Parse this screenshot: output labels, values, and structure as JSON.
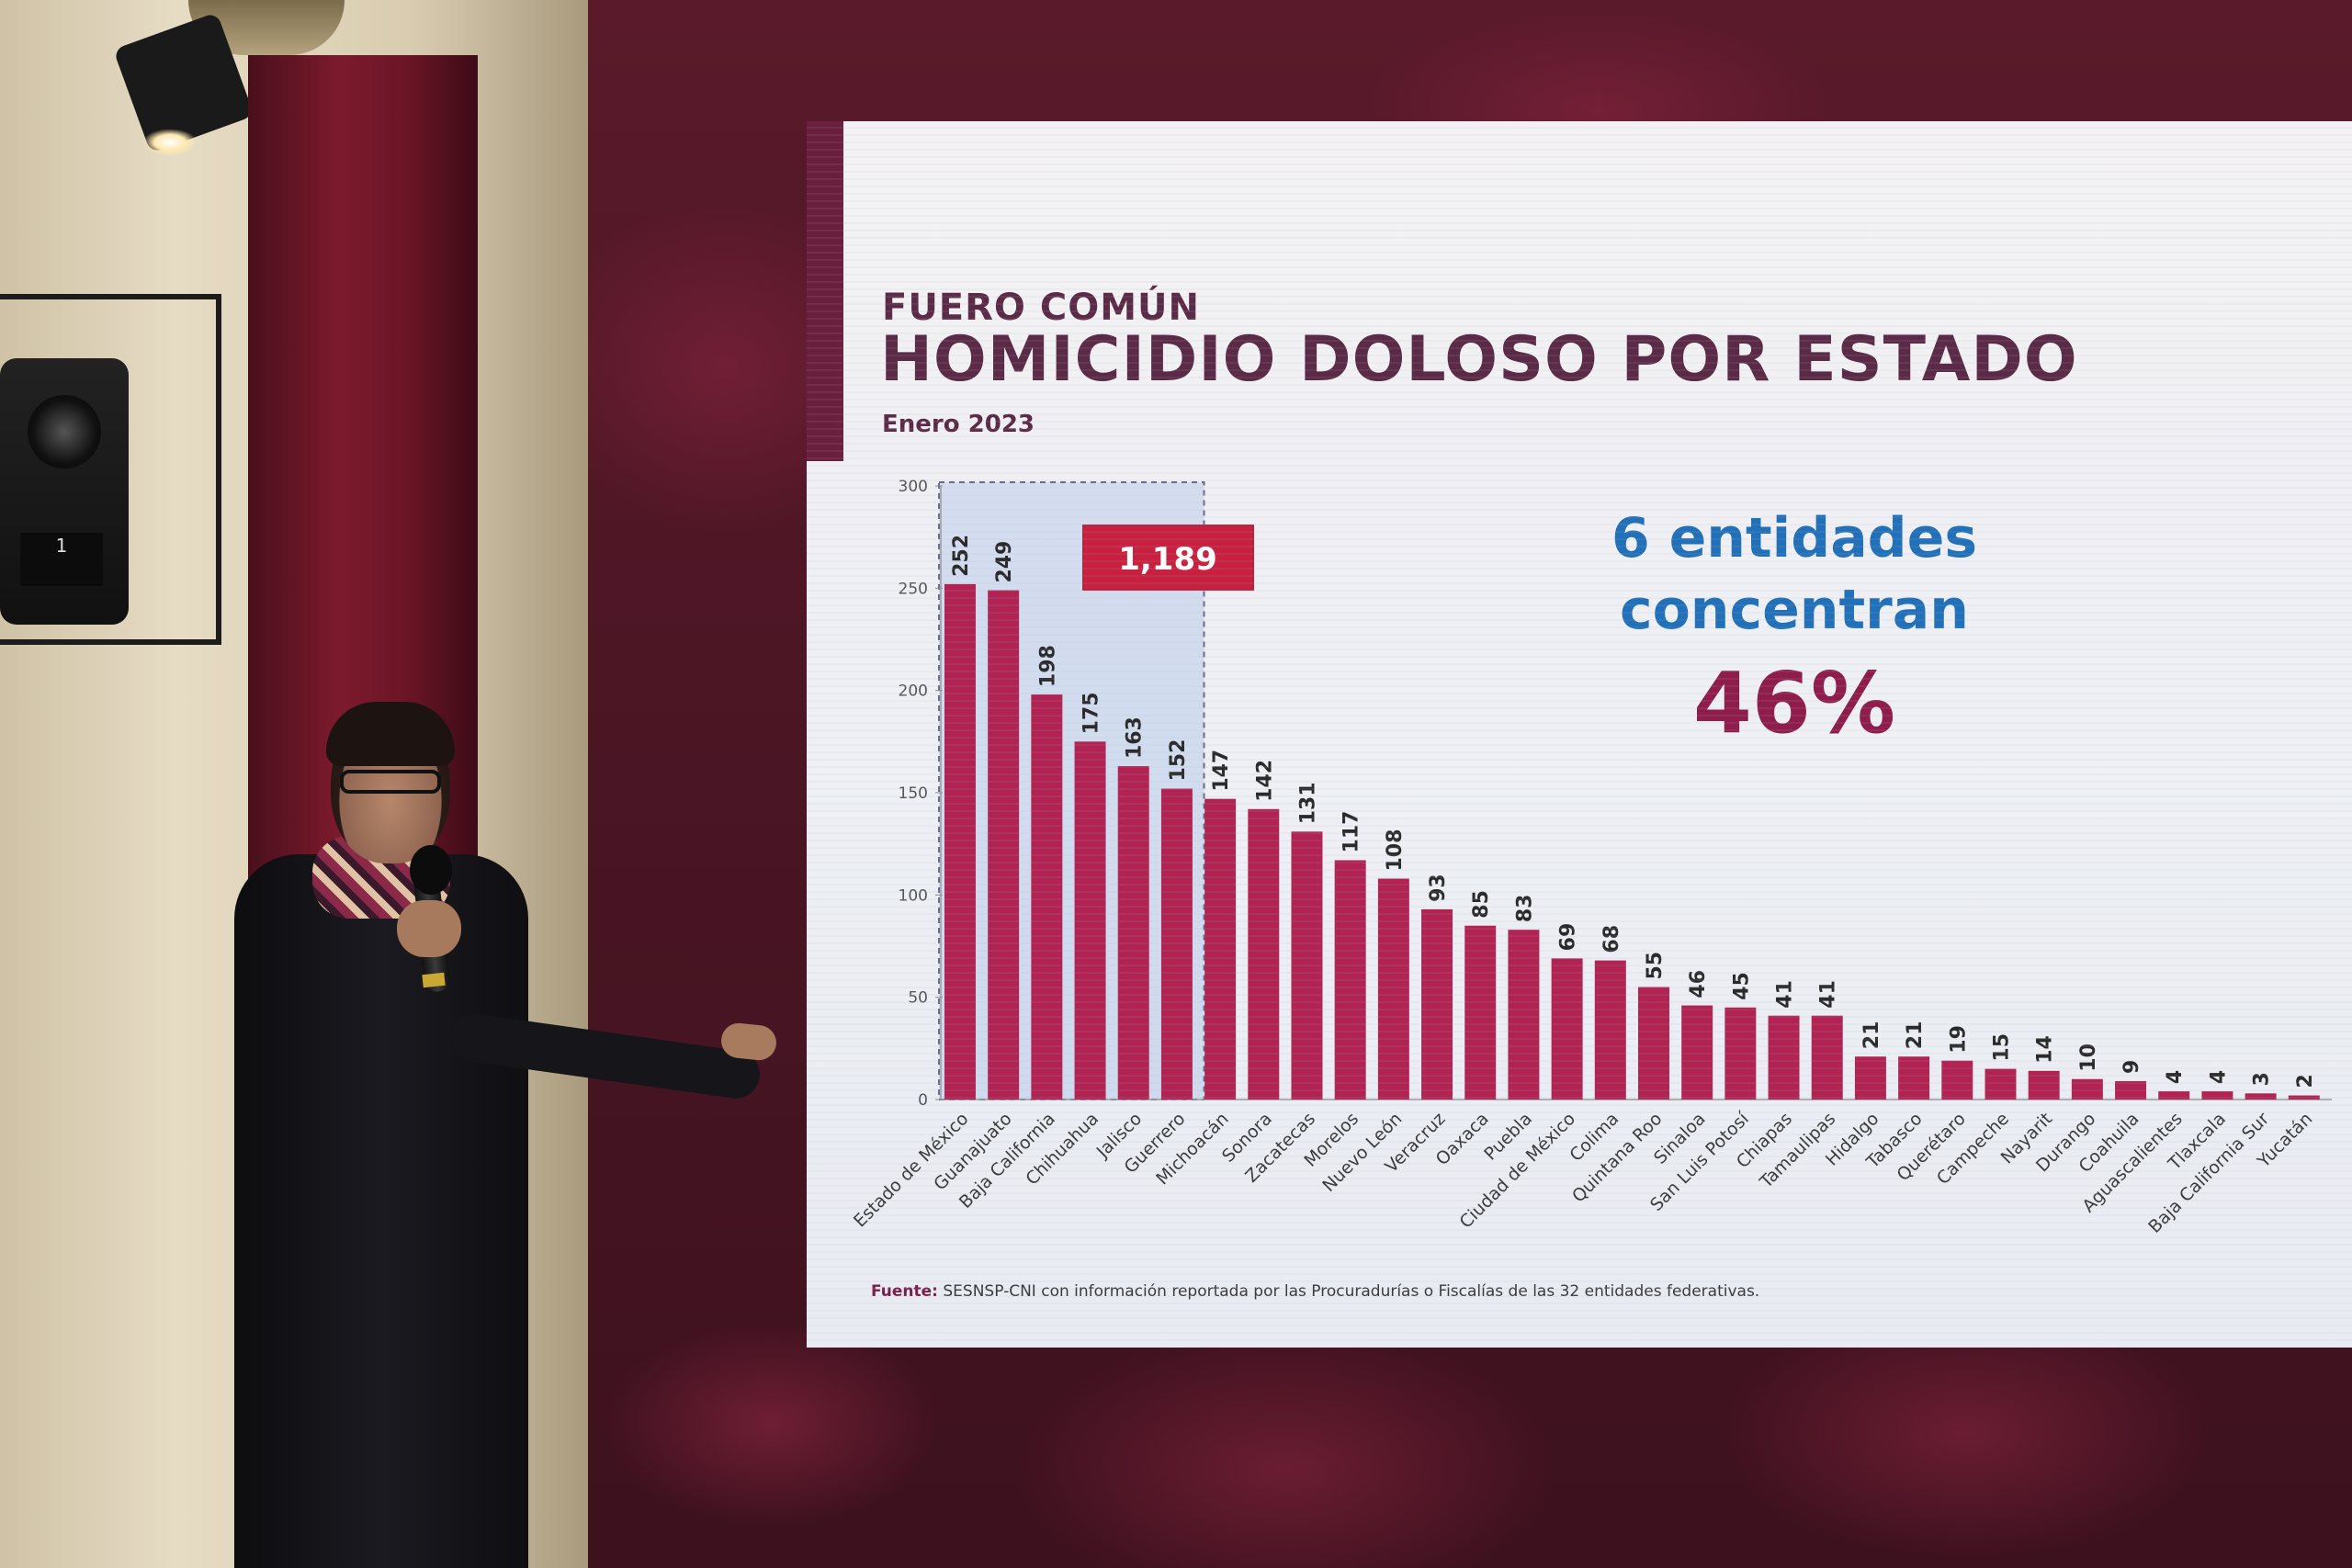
{
  "slide": {
    "kicker": "FUERO COMÚN",
    "title": "HOMICIDIO DOLOSO POR ESTADO",
    "date": "Enero 2023",
    "callout_line1": "6 entidades",
    "callout_line2": "concentran",
    "callout_pct": "46%",
    "source_label": "Fuente:",
    "source_text": " SESNSP-CNI con información reportada por las Procuradurías o Fiscalías de las 32 entidades federativas."
  },
  "background": {
    "camera_tag": "1"
  },
  "chart_data": {
    "type": "bar",
    "title": "HOMICIDIO DOLOSO POR ESTADO",
    "subtitle": "Enero 2023",
    "xlabel": "",
    "ylabel": "",
    "ylim": [
      0,
      300
    ],
    "yticks": [
      0,
      50,
      100,
      150,
      200,
      250,
      300
    ],
    "bar_color": "#b02352",
    "highlight": {
      "label": "1,189",
      "count": 6,
      "box_color": "#c8203f"
    },
    "categories": [
      "Estado de México",
      "Guanajuato",
      "Baja California",
      "Chihuahua",
      "Jalisco",
      "Guerrero",
      "Michoacán",
      "Sonora",
      "Zacatecas",
      "Morelos",
      "Nuevo León",
      "Veracruz",
      "Oaxaca",
      "Puebla",
      "Ciudad de México",
      "Colima",
      "Quintana Roo",
      "Sinaloa",
      "San Luis Potosí",
      "Chiapas",
      "Tamaulipas",
      "Hidalgo",
      "Tabasco",
      "Querétaro",
      "Campeche",
      "Nayarit",
      "Durango",
      "Coahuila",
      "Aguascalientes",
      "Tlaxcala",
      "Baja California Sur",
      "Yucatán"
    ],
    "values": [
      252,
      249,
      198,
      175,
      163,
      152,
      147,
      142,
      131,
      117,
      108,
      93,
      85,
      83,
      69,
      68,
      55,
      46,
      45,
      41,
      41,
      21,
      21,
      19,
      15,
      14,
      10,
      9,
      4,
      4,
      3,
      2
    ]
  }
}
